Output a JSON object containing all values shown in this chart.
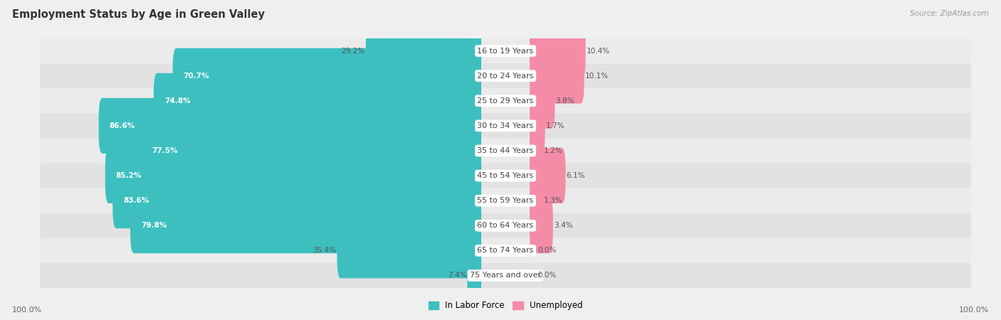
{
  "title": "Employment Status by Age in Green Valley",
  "source": "Source: ZipAtlas.com",
  "categories": [
    "16 to 19 Years",
    "20 to 24 Years",
    "25 to 29 Years",
    "30 to 34 Years",
    "35 to 44 Years",
    "45 to 54 Years",
    "55 to 59 Years",
    "60 to 64 Years",
    "65 to 74 Years",
    "75 Years and over"
  ],
  "in_labor_force": [
    29.2,
    70.7,
    74.8,
    86.6,
    77.5,
    85.2,
    83.6,
    79.8,
    35.4,
    7.4
  ],
  "unemployed": [
    10.4,
    10.1,
    3.8,
    1.7,
    1.2,
    6.1,
    1.3,
    3.4,
    0.0,
    0.0
  ],
  "labor_color": "#3DBFBF",
  "unemployed_color": "#F48CA7",
  "background_color": "#EFEFEF",
  "axis_label_left": "100.0%",
  "axis_label_right": "100.0%",
  "max_value": 100.0,
  "bar_height": 0.62,
  "row_bg_colors": [
    "#EBEBEB",
    "#E2E2E2"
  ]
}
